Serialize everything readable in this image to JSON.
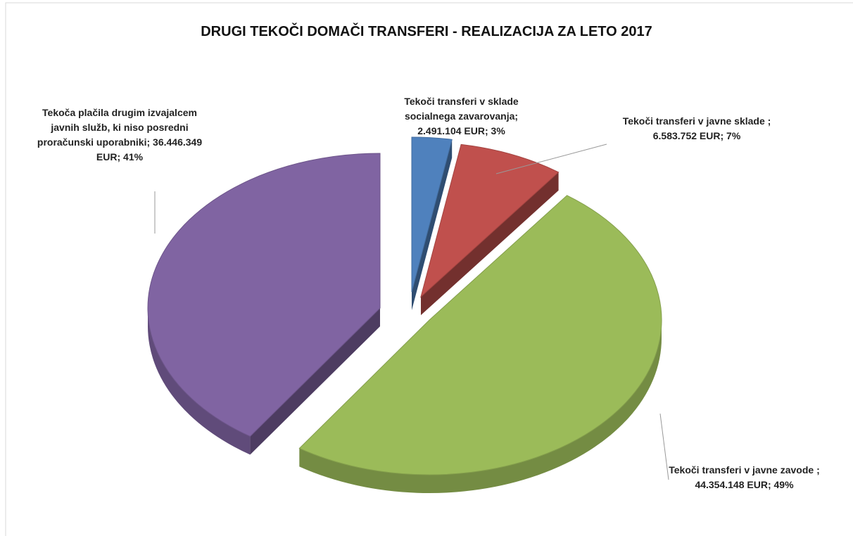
{
  "chart_data": {
    "type": "pie",
    "title": "DRUGI TEKOČI DOMAČI TRANSFERI - REALIZACIJA ZA LETO 2017",
    "categories": [
      "Tekoči transferi v sklade socialnega zavarovanja;",
      "Tekoči transferi v  javne sklade ;",
      "Tekoči transferi v javne zavode ;",
      "Tekoča plačila drugim izvajalcem javnih služb, ki niso posredni proračunski uporabniki;"
    ],
    "values": [
      2491104,
      6583752,
      44354148,
      36446349
    ],
    "value_labels": [
      "2.491.104 EUR;",
      "6.583.752 EUR;",
      "44.354.148 EUR;",
      "36.446.349 EUR;"
    ],
    "percent_labels": [
      "3%",
      "7%",
      "49%",
      "41%"
    ],
    "colors": [
      "#4f81bd",
      "#c0504d",
      "#9bbb59",
      "#8064a2"
    ]
  }
}
